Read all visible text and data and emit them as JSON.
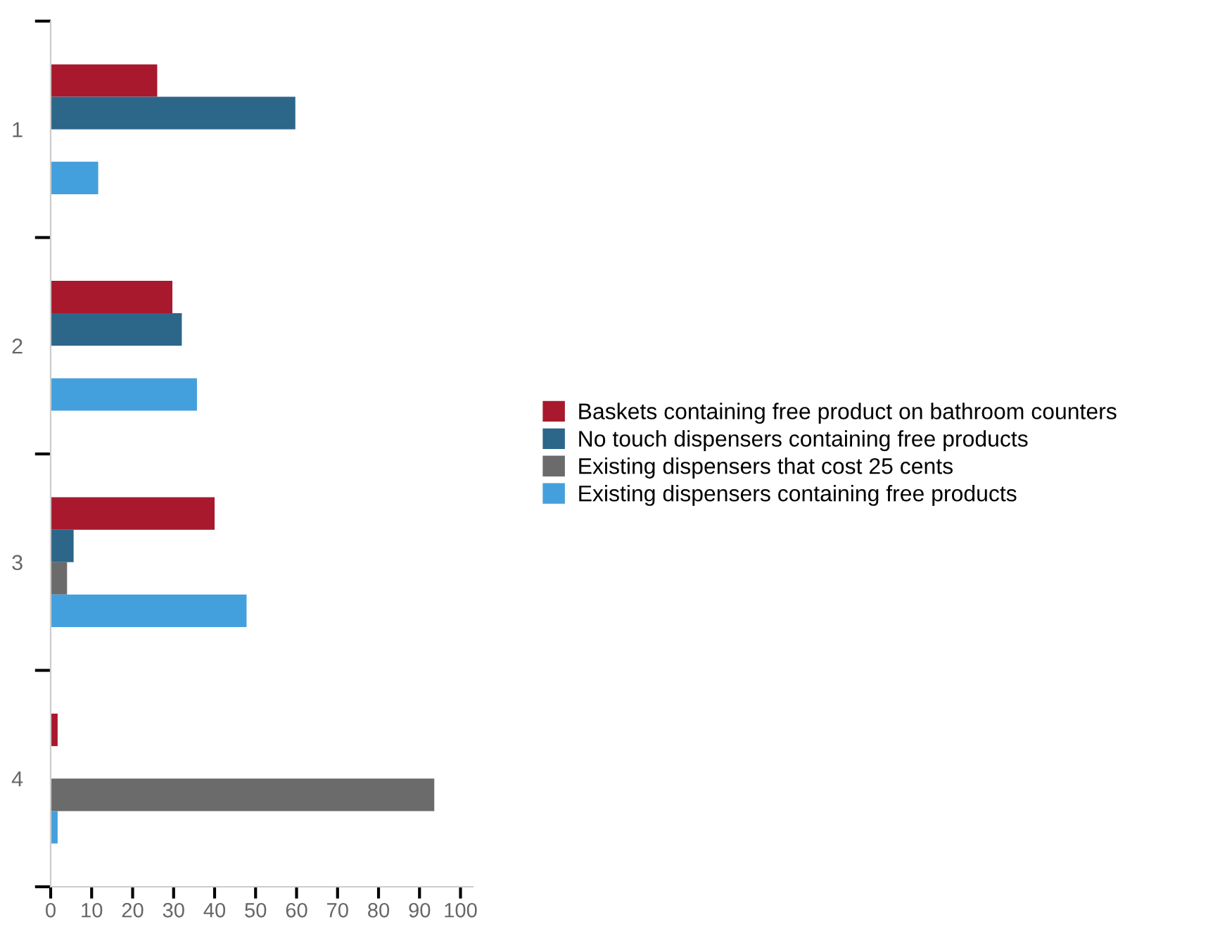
{
  "chart_data": {
    "type": "bar",
    "orientation": "horizontal",
    "categories": [
      "1",
      "2",
      "3",
      "4"
    ],
    "series": [
      {
        "name": "Baskets containing free product on bathroom counters",
        "color": "#a8192e",
        "values": [
          26,
          29.7,
          40,
          1.7
        ]
      },
      {
        "name": "No touch dispensers containing free products",
        "color": "#2c6689",
        "values": [
          59.7,
          32,
          5.6,
          0
        ]
      },
      {
        "name": "Existing dispensers that cost 25 cents",
        "color": "#6b6b6b",
        "values": [
          0,
          0,
          4,
          93.6
        ]
      },
      {
        "name": "Existing dispensers containing free products",
        "color": "#44a0dc",
        "values": [
          11.6,
          35.7,
          47.8,
          1.7
        ]
      }
    ],
    "xlim": [
      0,
      103
    ],
    "xticks": [
      0,
      10,
      20,
      30,
      40,
      50,
      60,
      70,
      80,
      90,
      100
    ],
    "grid": false,
    "legend": "right"
  }
}
